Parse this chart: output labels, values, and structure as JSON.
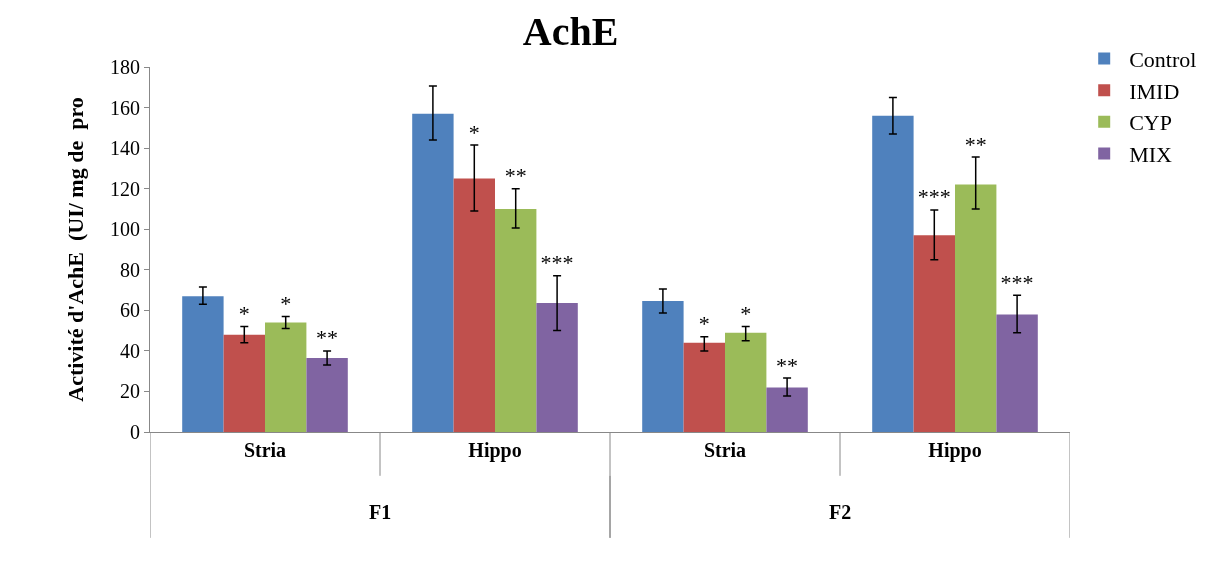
{
  "chart_data": {
    "type": "bar",
    "title": "AchE",
    "ylabel": "Activité d'AchE  (UI/ mg de  pro",
    "categories": [
      "Stria",
      "Hippo",
      "Stria",
      "Hippo"
    ],
    "annotations": [
      "F1",
      "F2"
    ],
    "ylim": [
      0,
      180
    ],
    "yticks": [
      0,
      20,
      40,
      60,
      80,
      100,
      120,
      140,
      160,
      180
    ],
    "legend": "top right",
    "series": [
      {
        "name": "Control",
        "color": "#4f81bd",
        "values": [
          67,
          157,
          64.6,
          156
        ],
        "errors": [
          [
            63,
            71.5
          ],
          [
            144,
            170.6
          ],
          [
            58.7,
            70.5
          ],
          [
            147,
            165
          ]
        ],
        "value_labels": [
          null,
          null,
          null,
          null
        ]
      },
      {
        "name": "IMID",
        "color": "#c0504d",
        "values": [
          48,
          125,
          44,
          97
        ],
        "errors": [
          [
            44,
            52
          ],
          [
            109,
            141.5
          ],
          [
            40,
            47
          ],
          [
            85,
            109.5
          ]
        ],
        "value_labels": [
          "*",
          "*",
          "*",
          "***"
        ]
      },
      {
        "name": "CYP",
        "color": "#9bbb59",
        "values": [
          54,
          110,
          49,
          122
        ],
        "errors": [
          [
            51,
            57
          ],
          [
            100.6,
            120
          ],
          [
            45,
            52
          ],
          [
            110,
            135.6
          ]
        ],
        "value_labels": [
          "*",
          "**",
          "*",
          "**"
        ]
      },
      {
        "name": "MIX",
        "color": "#8064a2",
        "values": [
          36.5,
          63.6,
          22,
          58
        ],
        "errors": [
          [
            33,
            40
          ],
          [
            50,
            77
          ],
          [
            17.7,
            26.6
          ],
          [
            49,
            67.5
          ]
        ],
        "value_labels": [
          "**",
          "***",
          "**",
          "***"
        ]
      }
    ]
  }
}
